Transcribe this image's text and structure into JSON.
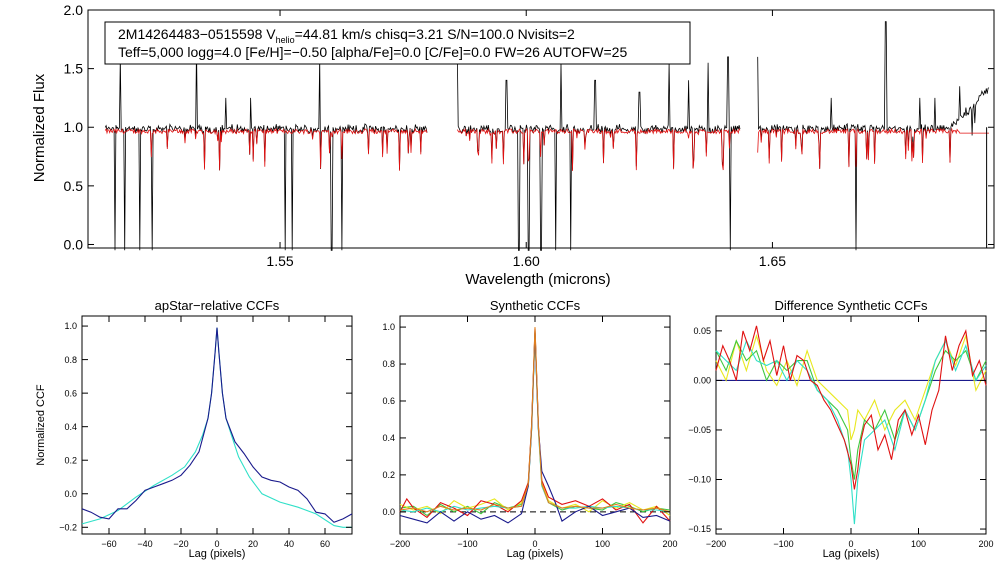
{
  "colors": {
    "black": "#000000",
    "red": "#e01010",
    "navy": "#1a1a8c",
    "cyan": "#30e0c8",
    "green": "#40c840",
    "yellow": "#e8e820",
    "orange": "#e08020"
  },
  "info_box": {
    "line1_a": "2M14264483−0515598  V",
    "line1_sub": "helio",
    "line1_b": "=44.81 km/s  chisq=3.21  S/N=100.0  Nvisits=2",
    "line2": "Teff=5,000 logg=4.0 [Fe/H]=−0.50 [alpha/Fe]=0.0 [C/Fe]=0.0 FW=26 AUTOFW=25"
  },
  "chart_data": [
    {
      "type": "line",
      "id": "spectrum",
      "title": "",
      "xlabel": "Wavelength (microns)",
      "ylabel": "Normalized Flux",
      "xlim": [
        1.511,
        1.695
      ],
      "ylim": [
        -0.03,
        2.0
      ],
      "xticks": [
        1.55,
        1.6,
        1.65
      ],
      "xtick_labels": [
        "1.55",
        "1.60",
        "1.65"
      ],
      "yticks": [
        0.0,
        0.5,
        1.0,
        1.5,
        2.0
      ],
      "ytick_labels": [
        "0.0",
        "0.5",
        "1.0",
        "1.5",
        "2.0"
      ],
      "chips": [
        [
          1.5145,
          1.58
        ],
        [
          1.586,
          1.6435
        ],
        [
          1.647,
          1.694
        ]
      ],
      "series": [
        {
          "name": "observed",
          "color": "#000000"
        },
        {
          "name": "model",
          "color": "#e01010"
        }
      ],
      "deep_lines": [
        1.5165,
        1.5185,
        1.5215,
        1.524,
        1.533,
        1.551,
        1.5525,
        1.5605,
        1.5625,
        1.5985,
        1.6005,
        1.603,
        1.606,
        1.609,
        1.6415,
        1.667
      ],
      "emission_spikes": [
        [
          1.5175,
          1.6
        ],
        [
          1.533,
          1.7
        ],
        [
          1.539,
          1.25
        ],
        [
          1.544,
          1.25
        ],
        [
          1.558,
          1.6
        ],
        [
          1.586,
          1.65
        ],
        [
          1.596,
          1.4
        ],
        [
          1.607,
          1.55
        ],
        [
          1.614,
          1.4
        ],
        [
          1.623,
          1.3
        ],
        [
          1.629,
          1.55
        ],
        [
          1.633,
          1.4
        ],
        [
          1.637,
          1.55
        ],
        [
          1.641,
          1.6
        ],
        [
          1.647,
          1.6
        ],
        [
          1.662,
          1.25
        ],
        [
          1.673,
          1.9
        ],
        [
          1.68,
          1.25
        ],
        [
          1.683,
          1.25
        ],
        [
          1.688,
          1.35
        ]
      ]
    },
    {
      "type": "line",
      "id": "apstar_ccf",
      "title": "apStar−relative CCFs",
      "xlabel": "Lag (pixels)",
      "ylabel": "Normalized CCF",
      "xlim": [
        -75,
        75
      ],
      "ylim": [
        -0.24,
        1.06
      ],
      "xticks": [
        -60,
        -40,
        -20,
        0,
        20,
        40,
        60
      ],
      "xtick_labels": [
        "−60",
        "−40",
        "−20",
        "0",
        "20",
        "40",
        "60"
      ],
      "yticks": [
        -0.2,
        0.0,
        0.2,
        0.4,
        0.6,
        0.8,
        1.0
      ],
      "ytick_labels": [
        "−0.2",
        "0.0",
        "0.2",
        "0.4",
        "0.6",
        "0.8",
        "1.0"
      ],
      "series": [
        {
          "name": "visit-1",
          "color": "#30e0c8",
          "x": [
            -75,
            -65,
            -55,
            -45,
            -35,
            -25,
            -18,
            -12,
            -8,
            -5,
            -3,
            -1,
            0,
            1,
            3,
            5,
            8,
            12,
            18,
            25,
            35,
            45,
            55,
            65,
            70,
            75
          ],
          "y": [
            -0.18,
            -0.15,
            -0.1,
            -0.02,
            0.05,
            0.11,
            0.16,
            0.25,
            0.35,
            0.45,
            0.6,
            0.85,
            0.99,
            0.85,
            0.6,
            0.45,
            0.35,
            0.22,
            0.1,
            0.0,
            -0.05,
            -0.08,
            -0.12,
            -0.19,
            -0.2,
            -0.2
          ]
        },
        {
          "name": "visit-2",
          "color": "#1a1a8c",
          "x": [
            -75,
            -70,
            -65,
            -60,
            -55,
            -50,
            -45,
            -40,
            -35,
            -30,
            -25,
            -20,
            -15,
            -10,
            -5,
            -3,
            -1,
            0,
            1,
            3,
            5,
            10,
            15,
            20,
            25,
            30,
            35,
            40,
            45,
            50,
            55,
            60,
            65,
            70,
            75
          ],
          "y": [
            -0.09,
            -0.11,
            -0.14,
            -0.15,
            -0.09,
            -0.09,
            -0.04,
            0.02,
            0.04,
            0.06,
            0.08,
            0.11,
            0.17,
            0.25,
            0.45,
            0.6,
            0.85,
            0.99,
            0.85,
            0.6,
            0.45,
            0.31,
            0.24,
            0.16,
            0.1,
            0.08,
            0.07,
            0.04,
            0.02,
            -0.03,
            -0.11,
            -0.12,
            -0.17,
            -0.15,
            -0.12
          ]
        }
      ],
      "dashed_zero": false
    },
    {
      "type": "line",
      "id": "synthetic_ccf",
      "title": "Synthetic CCFs",
      "xlabel": "Lag (pixels)",
      "ylabel": "",
      "xlim": [
        -200,
        200
      ],
      "ylim": [
        -0.12,
        1.06
      ],
      "xticks": [
        -200,
        -100,
        0,
        100,
        200
      ],
      "xtick_labels": [
        "−200",
        "−100",
        "0",
        "100",
        "200"
      ],
      "yticks": [
        0.0,
        0.2,
        0.4,
        0.6,
        0.8,
        1.0
      ],
      "ytick_labels": [
        "0.0",
        "0.2",
        "0.4",
        "0.6",
        "0.8",
        "1.0"
      ],
      "series": [
        {
          "name": "green",
          "color": "#40c840",
          "x": [
            -200,
            -180,
            -160,
            -140,
            -120,
            -100,
            -80,
            -60,
            -40,
            -20,
            -10,
            -5,
            0,
            5,
            10,
            20,
            40,
            60,
            80,
            100,
            120,
            140,
            160,
            180,
            200
          ],
          "y": [
            0.02,
            0.03,
            -0.02,
            0.04,
            0.0,
            0.03,
            -0.01,
            0.05,
            0.02,
            0.04,
            0.15,
            0.45,
            0.98,
            0.45,
            0.15,
            0.05,
            0.01,
            0.03,
            0.02,
            0.01,
            0.05,
            0.03,
            0.0,
            0.02,
            0.01
          ]
        },
        {
          "name": "yellow",
          "color": "#e8e820",
          "x": [
            -200,
            -180,
            -160,
            -140,
            -120,
            -100,
            -80,
            -60,
            -40,
            -20,
            -10,
            -5,
            0,
            5,
            10,
            20,
            40,
            60,
            80,
            100,
            120,
            140,
            160,
            180,
            200
          ],
          "y": [
            0.04,
            0.01,
            0.03,
            -0.01,
            0.06,
            0.02,
            0.04,
            0.07,
            0.01,
            0.05,
            0.16,
            0.46,
            0.97,
            0.46,
            0.16,
            0.06,
            0.02,
            0.04,
            0.0,
            0.06,
            0.02,
            0.05,
            0.01,
            0.03,
            -0.02
          ]
        },
        {
          "name": "red",
          "color": "#e01010",
          "x": [
            -200,
            -190,
            -180,
            -160,
            -140,
            -120,
            -100,
            -80,
            -60,
            -40,
            -20,
            -10,
            -5,
            0,
            5,
            10,
            20,
            40,
            60,
            80,
            100,
            120,
            140,
            160,
            180,
            200
          ],
          "y": [
            0.0,
            0.07,
            0.02,
            -0.03,
            0.05,
            0.02,
            -0.02,
            0.06,
            0.04,
            0.0,
            0.06,
            0.16,
            0.47,
            0.99,
            0.47,
            0.17,
            0.08,
            0.04,
            0.06,
            0.03,
            0.07,
            0.01,
            0.04,
            -0.06,
            0.03,
            -0.05
          ]
        },
        {
          "name": "cyan",
          "color": "#30e0c8",
          "x": [
            -200,
            -180,
            -160,
            -140,
            -120,
            -100,
            -80,
            -60,
            -40,
            -20,
            -10,
            -5,
            0,
            5,
            10,
            20,
            40,
            60,
            80,
            100,
            120,
            140,
            160,
            180,
            200
          ],
          "y": [
            0.01,
            0.0,
            0.02,
            0.0,
            0.03,
            0.01,
            0.02,
            0.03,
            0.02,
            0.03,
            0.14,
            0.44,
            0.96,
            0.44,
            0.14,
            0.05,
            0.02,
            0.02,
            0.03,
            0.02,
            0.03,
            0.02,
            0.01,
            0.01,
            0.0
          ]
        },
        {
          "name": "navy",
          "color": "#1a1a8c",
          "x": [
            -200,
            -180,
            -160,
            -140,
            -120,
            -100,
            -80,
            -60,
            -40,
            -20,
            -10,
            -5,
            0,
            5,
            10,
            20,
            30,
            40,
            60,
            80,
            100,
            120,
            140,
            160,
            180,
            200
          ],
          "y": [
            -0.02,
            -0.04,
            -0.06,
            0.0,
            -0.05,
            0.0,
            -0.04,
            -0.02,
            -0.06,
            -0.01,
            0.14,
            0.45,
            0.97,
            0.45,
            0.22,
            0.14,
            0.05,
            -0.05,
            0.0,
            0.03,
            -0.02,
            0.0,
            0.02,
            -0.03,
            -0.02,
            -0.05
          ]
        },
        {
          "name": "orange",
          "color": "#e08020",
          "x": [
            -200,
            -180,
            -160,
            -140,
            -120,
            -100,
            -80,
            -60,
            -40,
            -20,
            -10,
            -5,
            0,
            5,
            10,
            20,
            40,
            60,
            80,
            100,
            120,
            140,
            160,
            180,
            200
          ],
          "y": [
            0.01,
            0.02,
            0.0,
            0.03,
            0.01,
            0.02,
            0.01,
            0.04,
            0.02,
            0.03,
            0.15,
            0.46,
            1.0,
            0.46,
            0.15,
            0.05,
            0.02,
            0.03,
            0.02,
            0.02,
            0.04,
            0.02,
            0.01,
            0.02,
            0.0
          ]
        }
      ],
      "dashed_zero": true
    },
    {
      "type": "line",
      "id": "difference_ccf",
      "title": "Difference Synthetic CCFs",
      "xlabel": "Lag (pixels)",
      "ylabel": "",
      "xlim": [
        -200,
        200
      ],
      "ylim": [
        -0.155,
        0.065
      ],
      "xticks": [
        -200,
        -100,
        0,
        100,
        200
      ],
      "xtick_labels": [
        "−200",
        "−100",
        "0",
        "100",
        "200"
      ],
      "yticks": [
        -0.15,
        -0.1,
        -0.05,
        0.0,
        0.05
      ],
      "ytick_labels": [
        "−0.15",
        "−0.10",
        "−0.05",
        "0.00",
        "0.05"
      ],
      "series": [
        {
          "name": "navy",
          "color": "#1a1a8c",
          "x": [
            -200,
            200
          ],
          "y": [
            0.0,
            0.0
          ]
        },
        {
          "name": "yellow",
          "color": "#e8e820",
          "x": [
            -200,
            -185,
            -170,
            -155,
            -140,
            -125,
            -110,
            -95,
            -80,
            -65,
            -50,
            -35,
            -20,
            -5,
            0,
            5,
            10,
            20,
            35,
            50,
            65,
            80,
            95,
            110,
            125,
            140,
            155,
            170,
            185,
            200
          ],
          "y": [
            0.02,
            0.0,
            0.04,
            0.01,
            0.045,
            0.01,
            -0.005,
            0.02,
            -0.005,
            0.03,
            0.0,
            -0.01,
            -0.02,
            -0.03,
            -0.06,
            -0.05,
            -0.03,
            -0.04,
            -0.02,
            -0.05,
            -0.03,
            -0.02,
            -0.04,
            -0.01,
            0.02,
            0.04,
            0.015,
            0.045,
            -0.01,
            0.01
          ]
        },
        {
          "name": "green",
          "color": "#40c840",
          "x": [
            -200,
            -185,
            -170,
            -155,
            -140,
            -125,
            -110,
            -95,
            -80,
            -65,
            -50,
            -35,
            -20,
            -5,
            0,
            5,
            10,
            20,
            35,
            50,
            65,
            80,
            95,
            110,
            125,
            140,
            155,
            170,
            185,
            200
          ],
          "y": [
            0.03,
            0.01,
            0.04,
            0.02,
            0.03,
            0.0,
            0.02,
            0.01,
            0.02,
            0.02,
            -0.01,
            -0.02,
            -0.03,
            -0.05,
            -0.08,
            -0.1,
            -0.07,
            -0.04,
            -0.05,
            -0.03,
            -0.06,
            -0.03,
            -0.05,
            -0.02,
            0.01,
            0.03,
            0.02,
            0.03,
            0.0,
            0.02
          ]
        },
        {
          "name": "cyan",
          "color": "#30e0c8",
          "x": [
            -200,
            -185,
            -170,
            -155,
            -140,
            -125,
            -110,
            -95,
            -80,
            -65,
            -50,
            -35,
            -20,
            -5,
            0,
            5,
            10,
            20,
            35,
            50,
            65,
            80,
            95,
            110,
            125,
            140,
            155,
            170,
            185,
            200
          ],
          "y": [
            0.03,
            0.02,
            0.01,
            0.04,
            0.02,
            0.015,
            0.02,
            0.0,
            0.02,
            0.01,
            -0.01,
            -0.02,
            -0.04,
            -0.07,
            -0.1,
            -0.145,
            -0.1,
            -0.06,
            -0.05,
            -0.04,
            -0.07,
            -0.03,
            -0.05,
            -0.02,
            0.02,
            0.04,
            0.01,
            0.035,
            0.0,
            0.015
          ]
        },
        {
          "name": "red",
          "color": "#e01010",
          "x": [
            -200,
            -190,
            -180,
            -170,
            -160,
            -150,
            -140,
            -130,
            -120,
            -110,
            -100,
            -90,
            -80,
            -70,
            -60,
            -50,
            -40,
            -30,
            -20,
            -10,
            0,
            5,
            10,
            15,
            20,
            30,
            40,
            50,
            60,
            70,
            80,
            90,
            100,
            110,
            120,
            130,
            140,
            150,
            160,
            170,
            180,
            190,
            200
          ],
          "y": [
            0.01,
            0.035,
            0.02,
            0.0,
            0.05,
            0.03,
            0.055,
            0.02,
            0.04,
            0.005,
            0.035,
            0.0,
            0.025,
            0.02,
            0.0,
            -0.005,
            -0.02,
            -0.03,
            -0.045,
            -0.06,
            -0.085,
            -0.11,
            -0.09,
            -0.06,
            -0.045,
            -0.035,
            -0.07,
            -0.055,
            -0.08,
            -0.04,
            -0.03,
            -0.055,
            -0.035,
            -0.065,
            -0.03,
            -0.01,
            0.045,
            0.01,
            0.035,
            0.05,
            0.005,
            0.02,
            -0.005
          ]
        }
      ],
      "dashed_zero": false
    }
  ]
}
